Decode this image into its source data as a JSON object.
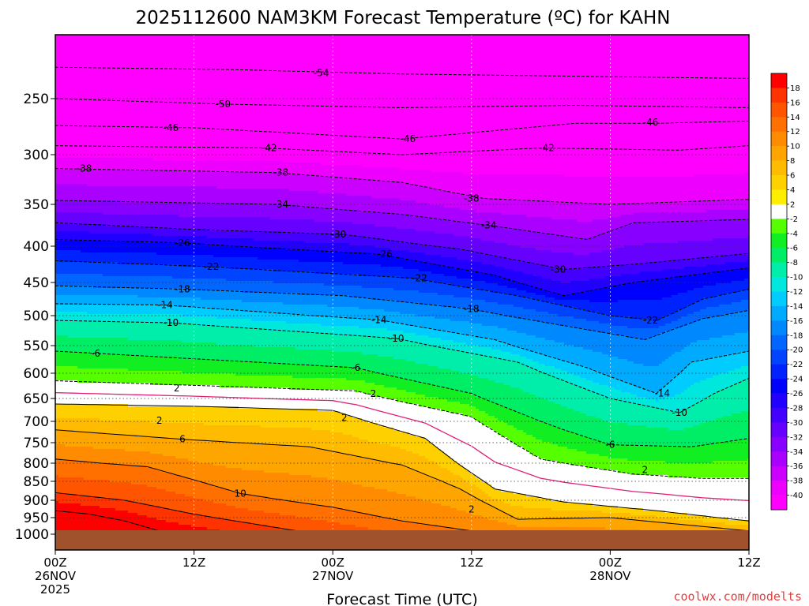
{
  "chart_data": {
    "type": "heatmap",
    "title": "2025112600 NAM3KM Forecast Temperature (ºC) for KAHN",
    "xlabel": "Forecast Time (UTC)",
    "ylabel": "",
    "credit": "coolwx.com/modelts",
    "x_ticks": [
      {
        "hours": 0,
        "line1": "00Z",
        "line2": "26NOV",
        "line3": "2025"
      },
      {
        "hours": 12,
        "line1": "12Z",
        "line2": "",
        "line3": ""
      },
      {
        "hours": 24,
        "line1": "00Z",
        "line2": "27NOV",
        "line3": ""
      },
      {
        "hours": 36,
        "line1": "12Z",
        "line2": "",
        "line3": ""
      },
      {
        "hours": 48,
        "line1": "00Z",
        "line2": "28NOV",
        "line3": ""
      },
      {
        "hours": 60,
        "line1": "12Z",
        "line2": "",
        "line3": ""
      }
    ],
    "x_range_hours": [
      0,
      60
    ],
    "y_ticks_hpa": [
      250,
      300,
      350,
      400,
      450,
      500,
      550,
      600,
      650,
      700,
      750,
      800,
      850,
      900,
      950,
      1000
    ],
    "y_range_hpa": [
      200,
      1030
    ],
    "ground_level_hpa": 980,
    "colorbar": {
      "labels": [
        "18",
        "16",
        "14",
        "12",
        "10",
        "8",
        "6",
        "4",
        "2",
        "-2",
        "-4",
        "-6",
        "-8",
        "-10",
        "-12",
        "-14",
        "-16",
        "-18",
        "-20",
        "-22",
        "-24",
        "-26",
        "-28",
        "-30",
        "-32",
        "-34",
        "-36",
        "-38",
        "-40"
      ],
      "colors": [
        "#ff0000",
        "#ff3300",
        "#ff5500",
        "#ff7000",
        "#ff8c00",
        "#ffa500",
        "#ffbb00",
        "#ffd000",
        "#ffee00",
        "#ffffff",
        "#55ff00",
        "#11ee22",
        "#00ee66",
        "#00eeaa",
        "#00e8dd",
        "#00ccff",
        "#00aaff",
        "#0088ff",
        "#0066ff",
        "#0044ff",
        "#0022ff",
        "#0000ff",
        "#2200ff",
        "#4400ff",
        "#6600ff",
        "#8800ff",
        "#aa00ff",
        "#cc00ff",
        "#ee00ff",
        "#ff00ff"
      ]
    },
    "contour_labels": [
      {
        "text": "-54",
        "hours": 23,
        "hpa": 227
      },
      {
        "text": "-50",
        "hours": 14.5,
        "hpa": 255
      },
      {
        "text": "-46",
        "hours": 10,
        "hpa": 276
      },
      {
        "text": "-46",
        "hours": 30.5,
        "hpa": 286
      },
      {
        "text": "-46",
        "hours": 51.5,
        "hpa": 271
      },
      {
        "text": "-42",
        "hours": 18.5,
        "hpa": 294
      },
      {
        "text": "-42",
        "hours": 42.5,
        "hpa": 294
      },
      {
        "text": "-38",
        "hours": 2.5,
        "hpa": 314
      },
      {
        "text": "-38",
        "hours": 19.5,
        "hpa": 318
      },
      {
        "text": "-38",
        "hours": 36,
        "hpa": 344
      },
      {
        "text": "-34",
        "hours": 19.5,
        "hpa": 350
      },
      {
        "text": "-34",
        "hours": 37.5,
        "hpa": 375
      },
      {
        "text": "-30",
        "hours": 24.5,
        "hpa": 386
      },
      {
        "text": "-30",
        "hours": 43.5,
        "hpa": 432
      },
      {
        "text": "-26",
        "hours": 11,
        "hpa": 396
      },
      {
        "text": "-26",
        "hours": 28.5,
        "hpa": 411
      },
      {
        "text": "-22",
        "hours": 13.5,
        "hpa": 428
      },
      {
        "text": "-22",
        "hours": 31.5,
        "hpa": 444
      },
      {
        "text": "-22",
        "hours": 51.5,
        "hpa": 508
      },
      {
        "text": "-18",
        "hours": 11,
        "hpa": 460
      },
      {
        "text": "-18",
        "hours": 36,
        "hpa": 490
      },
      {
        "text": "-14",
        "hours": 9.5,
        "hpa": 484
      },
      {
        "text": "-14",
        "hours": 28,
        "hpa": 507
      },
      {
        "text": "-14",
        "hours": 52.5,
        "hpa": 640
      },
      {
        "text": "-10",
        "hours": 10,
        "hpa": 512
      },
      {
        "text": "-10",
        "hours": 29.5,
        "hpa": 538
      },
      {
        "text": "-10",
        "hours": 54,
        "hpa": 681
      },
      {
        "text": "-6",
        "hours": 3.5,
        "hpa": 564
      },
      {
        "text": "-6",
        "hours": 26,
        "hpa": 590
      },
      {
        "text": "-6",
        "hours": 48,
        "hpa": 755
      },
      {
        "text": "2",
        "hours": 10.5,
        "hpa": 630
      },
      {
        "text": "2",
        "hours": 27.5,
        "hpa": 641
      },
      {
        "text": "2",
        "hours": 9,
        "hpa": 698
      },
      {
        "text": "2",
        "hours": 25,
        "hpa": 692
      },
      {
        "text": "2",
        "hours": 51,
        "hpa": 819
      },
      {
        "text": "2",
        "hours": 36,
        "hpa": 926
      },
      {
        "text": "6",
        "hours": 11,
        "hpa": 742
      },
      {
        "text": "10",
        "hours": 16,
        "hpa": 882
      }
    ]
  }
}
